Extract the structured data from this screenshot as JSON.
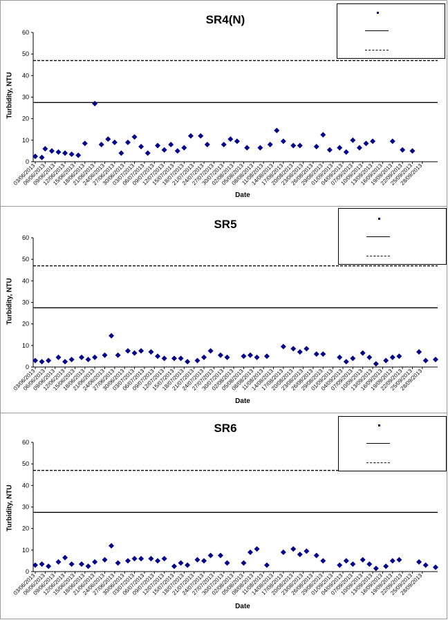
{
  "chart_data": [
    {
      "type": "scatter",
      "title": "SR4(N)",
      "xlabel": "Date",
      "ylabel": "Turbidity, NTU",
      "ylim": [
        0,
        60
      ],
      "yticks": [
        0,
        10,
        20,
        30,
        40,
        50,
        60
      ],
      "xtick_labels": [
        "03/06/2013",
        "06/06/2013",
        "09/06/2013",
        "12/06/2013",
        "15/06/2013",
        "18/06/2013",
        "21/06/2013",
        "24/06/2013",
        "27/06/2013",
        "30/06/2013",
        "03/07/2013",
        "06/07/2013",
        "09/07/2013",
        "12/07/2013",
        "15/07/2013",
        "18/07/2013",
        "21/07/2013",
        "24/07/2013",
        "27/07/2013",
        "30/07/2013",
        "02/08/2013",
        "05/08/2013",
        "08/08/2013",
        "11/08/2013",
        "14/08/2013",
        "17/08/2013",
        "20/08/2013",
        "23/08/2013",
        "26/08/2013",
        "29/08/2013",
        "01/09/2013",
        "04/09/2013",
        "07/09/2013",
        "10/09/2013",
        "13/09/2013",
        "16/09/2013",
        "19/09/2013",
        "22/09/2013",
        "25/09/2013",
        "28/09/2013"
      ],
      "grid": false,
      "legend_position": "top-right",
      "legend_text": [
        "",
        "",
        ""
      ],
      "reference_lines": [
        {
          "value": 27.5,
          "style": "solid"
        },
        {
          "value": 47,
          "style": "dashed"
        }
      ],
      "series": [
        {
          "marker": "diamond",
          "color": "#00008b",
          "points": [
            [
              "2013-06-03",
              2.5
            ],
            [
              "2013-06-05",
              2
            ],
            [
              "2013-06-06",
              6
            ],
            [
              "2013-06-08",
              5
            ],
            [
              "2013-06-10",
              4.5
            ],
            [
              "2013-06-12",
              4
            ],
            [
              "2013-06-14",
              3.5
            ],
            [
              "2013-06-16",
              3
            ],
            [
              "2013-06-18",
              8.5
            ],
            [
              "2013-06-21",
              27
            ],
            [
              "2013-06-23",
              8
            ],
            [
              "2013-06-25",
              10.5
            ],
            [
              "2013-06-27",
              9
            ],
            [
              "2013-06-29",
              4
            ],
            [
              "2013-07-01",
              9
            ],
            [
              "2013-07-03",
              11.5
            ],
            [
              "2013-07-05",
              7
            ],
            [
              "2013-07-07",
              4
            ],
            [
              "2013-07-10",
              7.5
            ],
            [
              "2013-07-12",
              5.5
            ],
            [
              "2013-07-14",
              8
            ],
            [
              "2013-07-16",
              5
            ],
            [
              "2013-07-18",
              6.5
            ],
            [
              "2013-07-20",
              12
            ],
            [
              "2013-07-23",
              12
            ],
            [
              "2013-07-25",
              8
            ],
            [
              "2013-07-30",
              8
            ],
            [
              "2013-08-01",
              10.5
            ],
            [
              "2013-08-03",
              9.5
            ],
            [
              "2013-08-06",
              6.5
            ],
            [
              "2013-08-10",
              6.5
            ],
            [
              "2013-08-13",
              8
            ],
            [
              "2013-08-15",
              14.5
            ],
            [
              "2013-08-17",
              9.5
            ],
            [
              "2013-08-20",
              7.5
            ],
            [
              "2013-08-22",
              7.5
            ],
            [
              "2013-08-27",
              7
            ],
            [
              "2013-08-29",
              12.5
            ],
            [
              "2013-08-31",
              5.5
            ],
            [
              "2013-09-03",
              6.5
            ],
            [
              "2013-09-05",
              4.5
            ],
            [
              "2013-09-07",
              10
            ],
            [
              "2013-09-09",
              6.5
            ],
            [
              "2013-09-11",
              8.5
            ],
            [
              "2013-09-13",
              9.5
            ],
            [
              "2013-09-19",
              9.5
            ],
            [
              "2013-09-22",
              5.5
            ],
            [
              "2013-09-25",
              5
            ]
          ]
        }
      ]
    },
    {
      "type": "scatter",
      "title": "SR5",
      "xlabel": "Date",
      "ylabel": "Turbidity, NTU",
      "ylim": [
        0,
        60
      ],
      "yticks": [
        0,
        10,
        20,
        30,
        40,
        50,
        60
      ],
      "xtick_labels": [
        "03/06/2013",
        "06/06/2013",
        "09/06/2013",
        "12/06/2013",
        "15/06/2013",
        "18/06/2013",
        "21/06/2013",
        "24/06/2013",
        "27/06/2013",
        "30/06/2013",
        "03/07/2013",
        "06/07/2013",
        "09/07/2013",
        "12/07/2013",
        "15/07/2013",
        "18/07/2013",
        "21/07/2013",
        "24/07/2013",
        "27/07/2013",
        "30/07/2013",
        "02/08/2013",
        "05/08/2013",
        "08/08/2013",
        "11/08/2013",
        "14/08/2013",
        "17/08/2013",
        "20/08/2013",
        "23/08/2013",
        "26/08/2013",
        "29/08/2013",
        "01/09/2013",
        "04/09/2013",
        "07/09/2013",
        "10/09/2013",
        "13/09/2013",
        "16/09/2013",
        "19/09/2013",
        "22/09/2013",
        "25/09/2013",
        "28/09/2013"
      ],
      "grid": false,
      "legend_position": "top-right",
      "legend_text": [
        "",
        "",
        ""
      ],
      "reference_lines": [
        {
          "value": 27.5,
          "style": "solid"
        },
        {
          "value": 47,
          "style": "dashed"
        }
      ],
      "series": [
        {
          "marker": "diamond",
          "color": "#00008b",
          "points": [
            [
              "2013-06-03",
              3
            ],
            [
              "2013-06-05",
              2.5
            ],
            [
              "2013-06-07",
              3
            ],
            [
              "2013-06-10",
              4.5
            ],
            [
              "2013-06-12",
              2.5
            ],
            [
              "2013-06-14",
              3.5
            ],
            [
              "2013-06-17",
              4.5
            ],
            [
              "2013-06-19",
              3.5
            ],
            [
              "2013-06-21",
              4.5
            ],
            [
              "2013-06-24",
              5.5
            ],
            [
              "2013-06-26",
              14.5
            ],
            [
              "2013-06-28",
              5.5
            ],
            [
              "2013-07-01",
              7.5
            ],
            [
              "2013-07-03",
              6.5
            ],
            [
              "2013-07-05",
              7.5
            ],
            [
              "2013-07-08",
              7
            ],
            [
              "2013-07-10",
              5
            ],
            [
              "2013-07-12",
              4
            ],
            [
              "2013-07-15",
              4
            ],
            [
              "2013-07-17",
              4
            ],
            [
              "2013-07-19",
              2.5
            ],
            [
              "2013-07-22",
              3
            ],
            [
              "2013-07-24",
              4.5
            ],
            [
              "2013-07-26",
              7.5
            ],
            [
              "2013-07-29",
              5.5
            ],
            [
              "2013-07-31",
              4.5
            ],
            [
              "2013-08-05",
              5
            ],
            [
              "2013-08-07",
              5.5
            ],
            [
              "2013-08-09",
              4.5
            ],
            [
              "2013-08-12",
              5
            ],
            [
              "2013-08-17",
              9.5
            ],
            [
              "2013-08-20",
              8.5
            ],
            [
              "2013-08-22",
              7
            ],
            [
              "2013-08-24",
              8.5
            ],
            [
              "2013-08-27",
              6
            ],
            [
              "2013-08-29",
              6
            ],
            [
              "2013-09-03",
              4.5
            ],
            [
              "2013-09-05",
              2.5
            ],
            [
              "2013-09-07",
              4
            ],
            [
              "2013-09-10",
              6.5
            ],
            [
              "2013-09-12",
              4.5
            ],
            [
              "2013-09-14",
              1.5
            ],
            [
              "2013-09-17",
              3
            ],
            [
              "2013-09-19",
              4.5
            ],
            [
              "2013-09-21",
              5
            ],
            [
              "2013-09-27",
              7
            ],
            [
              "2013-09-29",
              3
            ],
            [
              "2013-10-02",
              3.5
            ]
          ]
        }
      ]
    },
    {
      "type": "scatter",
      "title": "SR6",
      "xlabel": "Date",
      "ylabel": "Turbidity, NTU",
      "ylim": [
        0,
        60
      ],
      "yticks": [
        0,
        10,
        20,
        30,
        40,
        50,
        60
      ],
      "xtick_labels": [
        "03/06/2013",
        "06/06/2013",
        "09/06/2013",
        "12/06/2013",
        "15/06/2013",
        "18/06/2013",
        "21/06/2013",
        "24/06/2013",
        "27/06/2013",
        "30/06/2013",
        "03/07/2013",
        "06/07/2013",
        "09/07/2013",
        "12/07/2013",
        "15/07/2013",
        "18/07/2013",
        "21/07/2013",
        "24/07/2013",
        "27/07/2013",
        "30/07/2013",
        "02/08/2013",
        "05/08/2013",
        "08/08/2013",
        "11/08/2013",
        "14/08/2013",
        "17/08/2013",
        "20/08/2013",
        "23/08/2013",
        "26/08/2013",
        "29/08/2013",
        "01/09/2013",
        "04/09/2013",
        "07/09/2013",
        "10/09/2013",
        "13/09/2013",
        "16/09/2013",
        "19/09/2013",
        "22/09/2013",
        "25/09/2013",
        "28/09/2013"
      ],
      "grid": false,
      "legend_position": "top-right",
      "legend_text": [
        "",
        "",
        ""
      ],
      "reference_lines": [
        {
          "value": 27.5,
          "style": "solid"
        },
        {
          "value": 47,
          "style": "dashed"
        }
      ],
      "series": [
        {
          "marker": "diamond",
          "color": "#00008b",
          "points": [
            [
              "2013-06-03",
              3
            ],
            [
              "2013-06-05",
              3.5
            ],
            [
              "2013-06-07",
              2.5
            ],
            [
              "2013-06-10",
              4.5
            ],
            [
              "2013-06-12",
              6.5
            ],
            [
              "2013-06-14",
              3.5
            ],
            [
              "2013-06-17",
              3.5
            ],
            [
              "2013-06-19",
              2.5
            ],
            [
              "2013-06-21",
              4.5
            ],
            [
              "2013-06-24",
              5.5
            ],
            [
              "2013-06-26",
              12
            ],
            [
              "2013-06-28",
              4
            ],
            [
              "2013-07-01",
              5
            ],
            [
              "2013-07-03",
              6
            ],
            [
              "2013-07-05",
              6
            ],
            [
              "2013-07-08",
              6
            ],
            [
              "2013-07-10",
              5
            ],
            [
              "2013-07-12",
              6
            ],
            [
              "2013-07-15",
              2.5
            ],
            [
              "2013-07-17",
              4
            ],
            [
              "2013-07-19",
              3
            ],
            [
              "2013-07-22",
              5.5
            ],
            [
              "2013-07-24",
              5
            ],
            [
              "2013-07-26",
              7.5
            ],
            [
              "2013-07-29",
              7.5
            ],
            [
              "2013-07-31",
              4
            ],
            [
              "2013-08-05",
              4
            ],
            [
              "2013-08-07",
              9
            ],
            [
              "2013-08-09",
              10.5
            ],
            [
              "2013-08-12",
              3
            ],
            [
              "2013-08-17",
              9
            ],
            [
              "2013-08-20",
              10.5
            ],
            [
              "2013-08-22",
              8
            ],
            [
              "2013-08-24",
              9.5
            ],
            [
              "2013-08-27",
              7.5
            ],
            [
              "2013-08-29",
              5
            ],
            [
              "2013-09-03",
              3
            ],
            [
              "2013-09-05",
              5
            ],
            [
              "2013-09-07",
              3.5
            ],
            [
              "2013-09-10",
              5.5
            ],
            [
              "2013-09-12",
              3.5
            ],
            [
              "2013-09-14",
              1.5
            ],
            [
              "2013-09-17",
              2.5
            ],
            [
              "2013-09-19",
              5
            ],
            [
              "2013-09-21",
              5.5
            ],
            [
              "2013-09-27",
              4.5
            ],
            [
              "2013-09-29",
              3
            ],
            [
              "2013-10-02",
              2
            ]
          ]
        }
      ]
    }
  ]
}
